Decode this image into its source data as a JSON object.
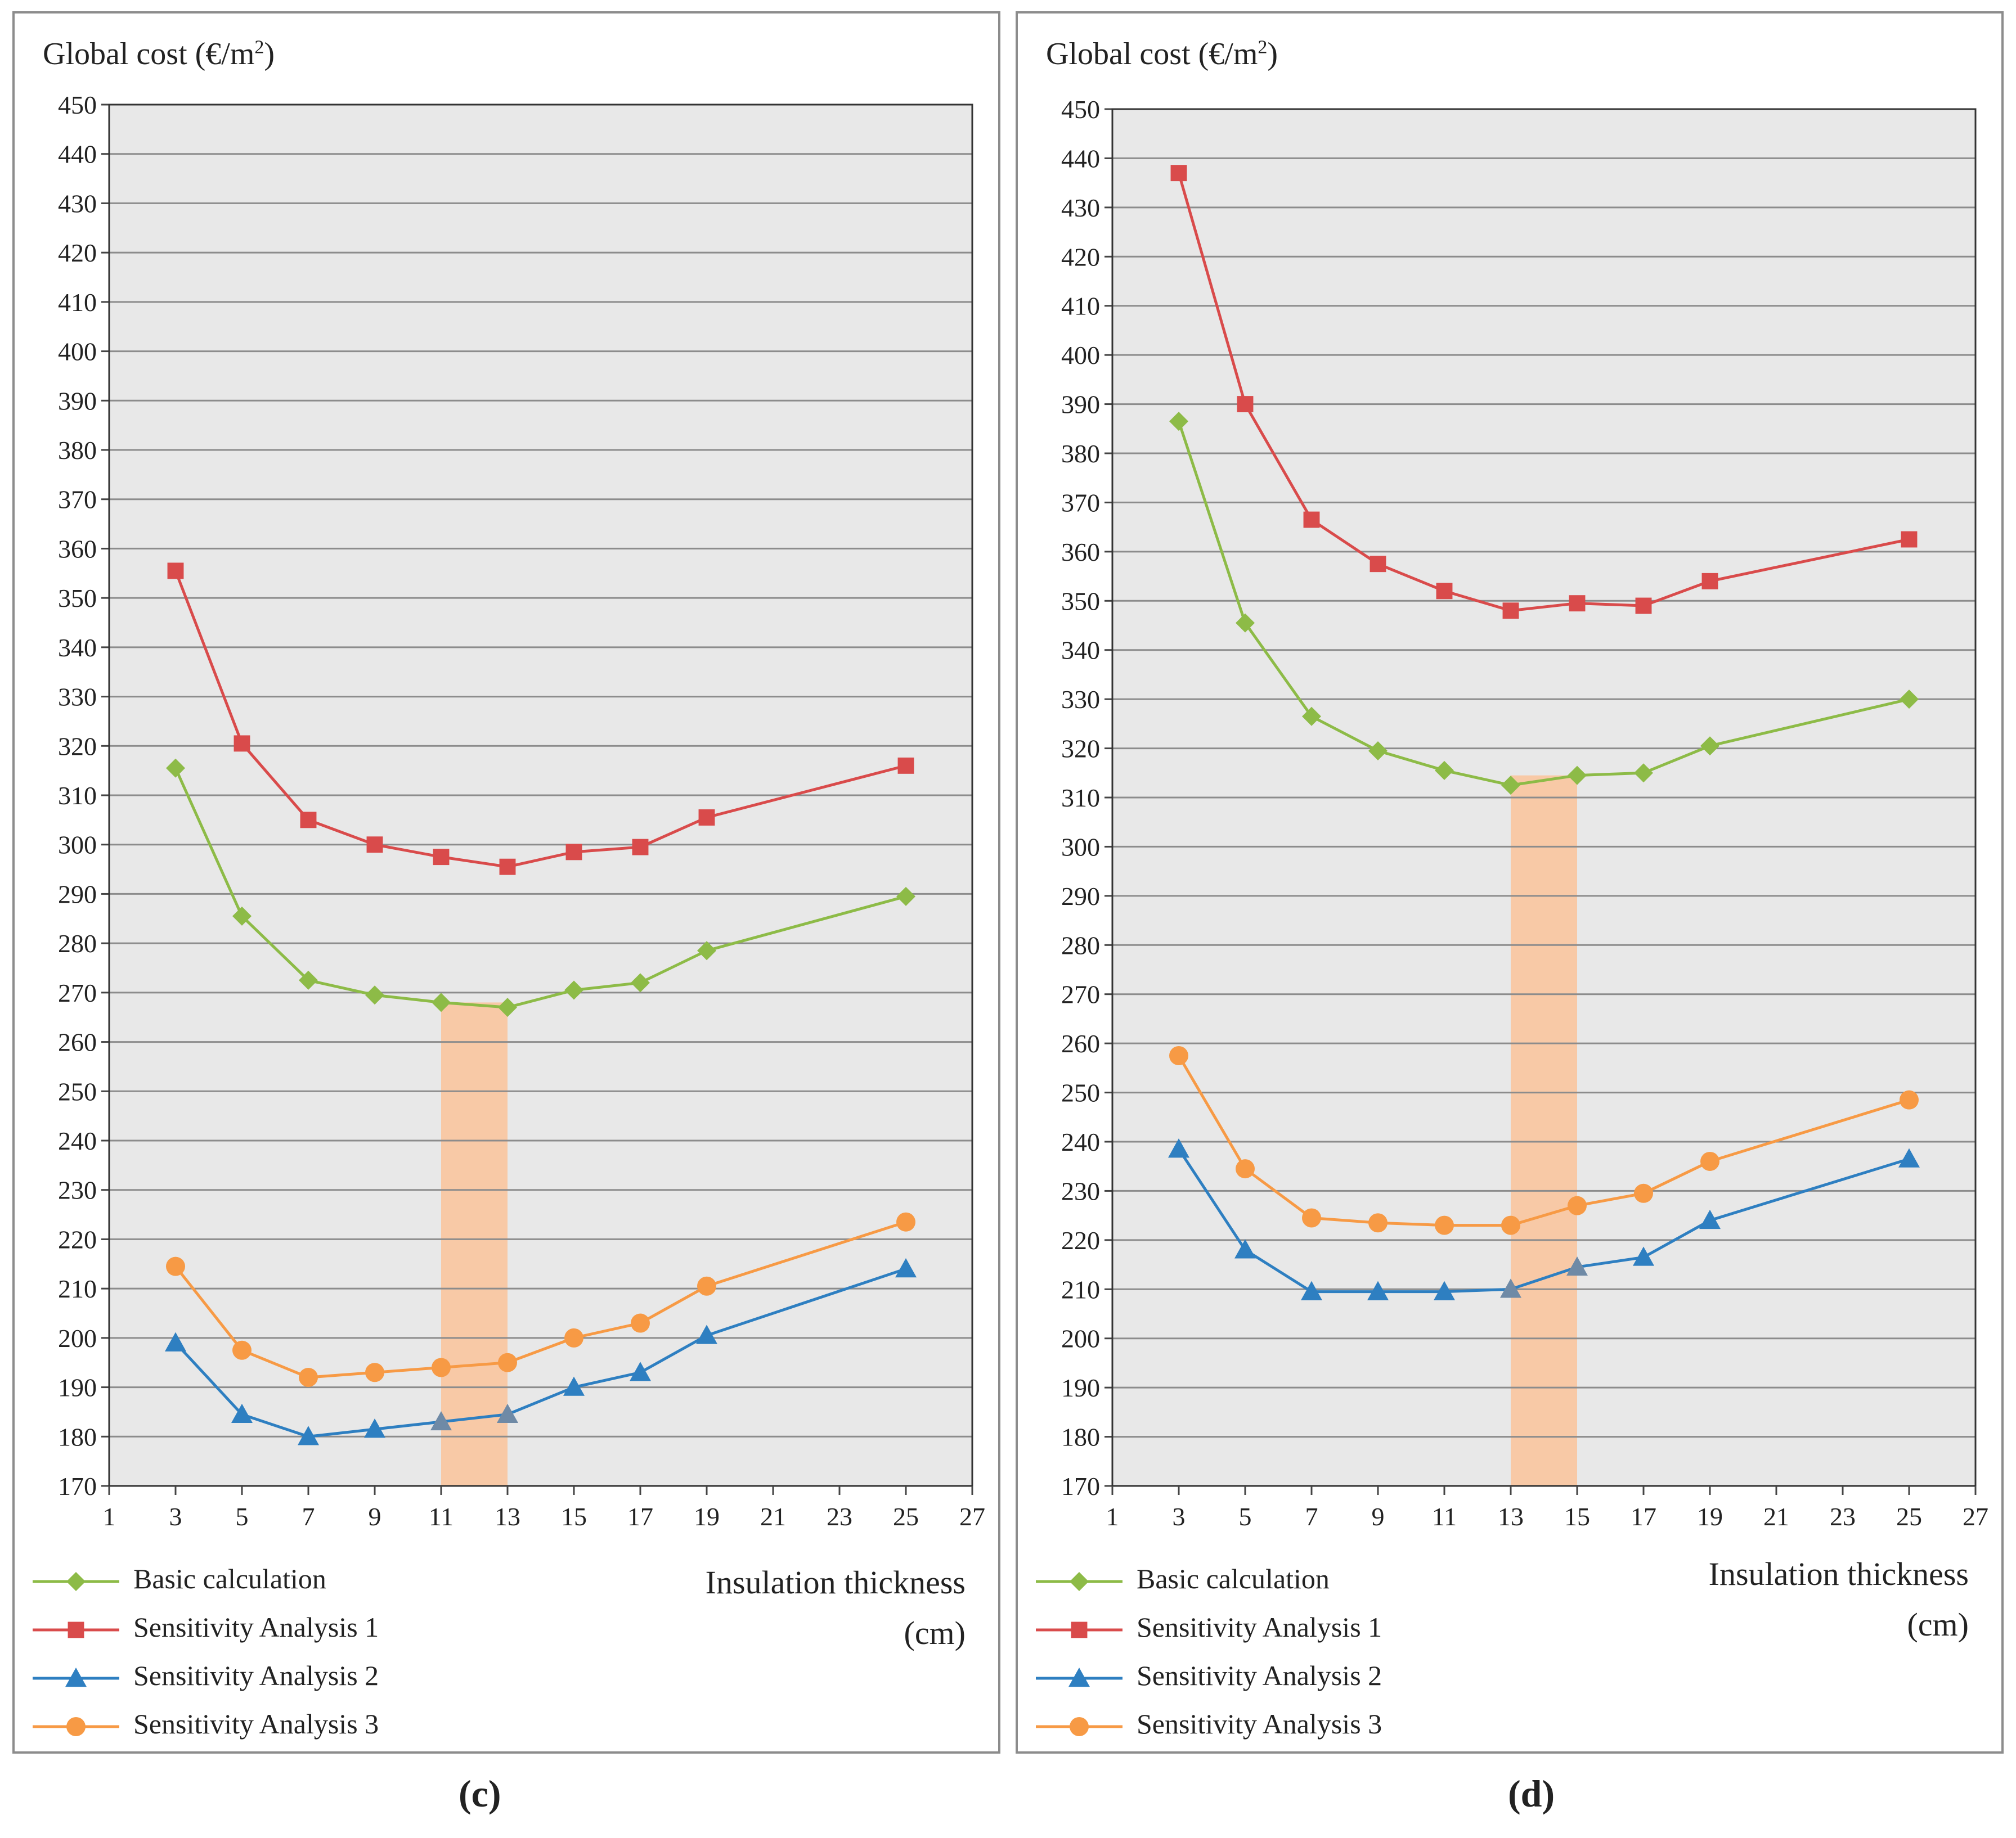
{
  "chart_data": [
    {
      "type": "line",
      "panel": "c",
      "caption": "(c)",
      "ylabel_text": "Global cost (€/m",
      "ylabel_sup": "2",
      "ylabel_close": ")",
      "xlabel_line1": "Insulation thickness",
      "xlabel_line2": "(cm)",
      "x": [
        3,
        5,
        7,
        9,
        11,
        13,
        15,
        17,
        19,
        25
      ],
      "xlim": [
        1,
        27
      ],
      "xticks": [
        1,
        3,
        5,
        7,
        9,
        11,
        13,
        15,
        17,
        19,
        21,
        23,
        25,
        27
      ],
      "ylim": [
        170,
        450
      ],
      "ystep": 10,
      "grid": true,
      "legend_position": "bottom-left",
      "highlight_band": [
        11,
        13
      ],
      "series": [
        {
          "name": "Basic calculation",
          "color": "#8dbb47",
          "marker": "diamond",
          "values": [
            315.5,
            285.5,
            272.5,
            269.5,
            268,
            267,
            270.5,
            272,
            278.5,
            289.5
          ]
        },
        {
          "name": "Sensitivity Analysis 1",
          "color": "#d94b4b",
          "marker": "square",
          "values": [
            355.5,
            320.5,
            305,
            300,
            297.5,
            295.5,
            298.5,
            299.5,
            305.5,
            316
          ]
        },
        {
          "name": "Sensitivity Analysis 2",
          "color": "#2e7fc1",
          "marker": "triangle",
          "values": [
            199,
            184.5,
            180,
            181.5,
            183,
            184.5,
            190,
            193,
            200.5,
            214
          ]
        },
        {
          "name": "Sensitivity Analysis 3",
          "color": "#f79a45",
          "marker": "circle",
          "values": [
            214.5,
            197.5,
            192,
            193,
            194,
            195,
            200,
            203,
            210.5,
            223.5
          ]
        }
      ]
    },
    {
      "type": "line",
      "panel": "d",
      "caption": "(d)",
      "ylabel_text": "Global cost (€/m",
      "ylabel_sup": "2",
      "ylabel_close": ")",
      "xlabel_line1": "Insulation thickness",
      "xlabel_line2": "(cm)",
      "x": [
        3,
        5,
        7,
        9,
        11,
        13,
        15,
        17,
        19,
        25
      ],
      "xlim": [
        1,
        27
      ],
      "xticks": [
        1,
        3,
        5,
        7,
        9,
        11,
        13,
        15,
        17,
        19,
        21,
        23,
        25,
        27
      ],
      "ylim": [
        170,
        450
      ],
      "ystep": 10,
      "grid": true,
      "legend_position": "bottom-left",
      "highlight_band": [
        13,
        15
      ],
      "series": [
        {
          "name": "Basic calculation",
          "color": "#8dbb47",
          "marker": "diamond",
          "values": [
            386.5,
            345.5,
            326.5,
            319.5,
            315.5,
            312.5,
            314.5,
            315,
            320.5,
            330
          ]
        },
        {
          "name": "Sensitivity Analysis 1",
          "color": "#d94b4b",
          "marker": "square",
          "values": [
            437,
            390,
            366.5,
            357.5,
            352,
            348,
            349.5,
            349,
            354,
            362.5
          ]
        },
        {
          "name": "Sensitivity Analysis 2",
          "color": "#2e7fc1",
          "marker": "triangle",
          "values": [
            238.5,
            218,
            209.5,
            209.5,
            209.5,
            210,
            214.5,
            216.5,
            224,
            236.5
          ]
        },
        {
          "name": "Sensitivity Analysis 3",
          "color": "#f79a45",
          "marker": "circle",
          "values": [
            257.5,
            234.5,
            224.5,
            223.5,
            223,
            223,
            227,
            229.5,
            236,
            248.5
          ]
        }
      ]
    }
  ]
}
